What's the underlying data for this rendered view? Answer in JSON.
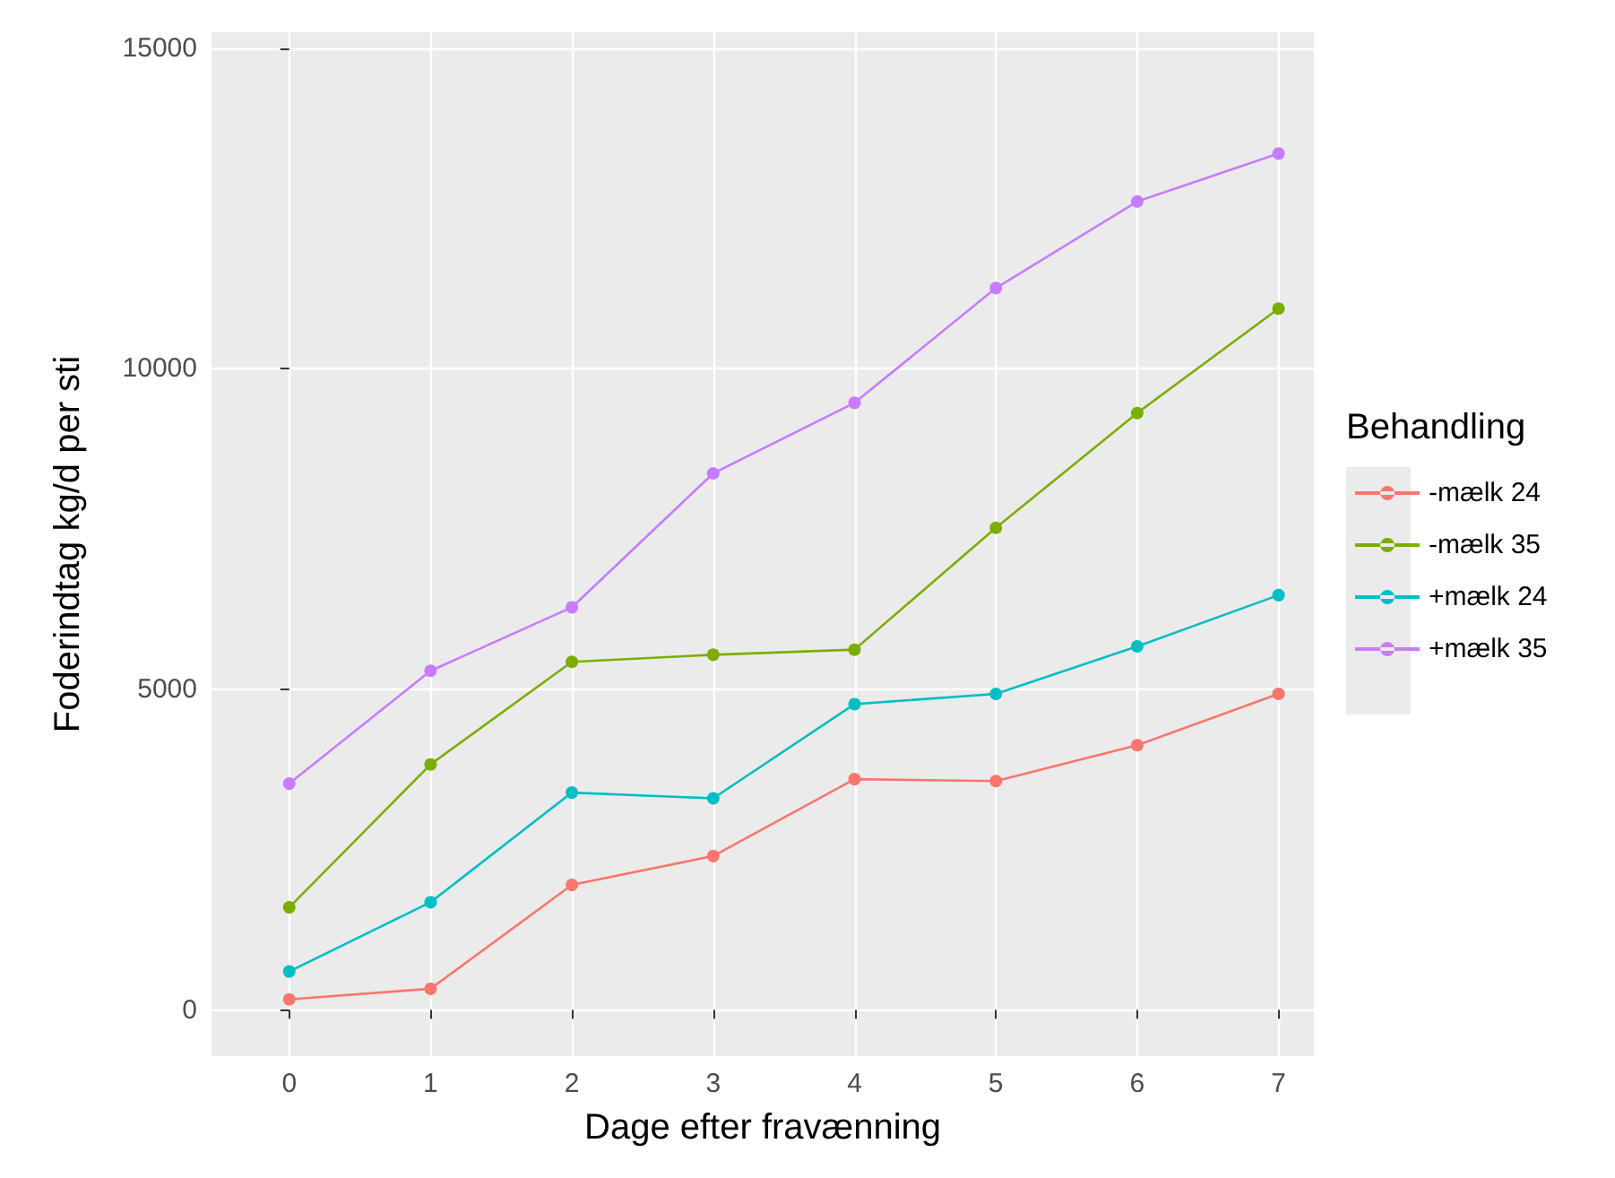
{
  "chart_data": {
    "type": "line",
    "xlabel": "Dage efter fravænning",
    "ylabel": "Foderindtag kg/d per sti",
    "legend_title": "Behandling",
    "x": [
      0,
      1,
      2,
      3,
      4,
      5,
      6,
      7
    ],
    "series": [
      {
        "name": "-mælk 24",
        "color": "#f8766d",
        "values": [
          165,
          330,
          1950,
          2400,
          3600,
          3570,
          4130,
          4930
        ]
      },
      {
        "name": "-mælk 35",
        "color": "#7cae00",
        "values": [
          1600,
          3830,
          5430,
          5540,
          5620,
          7520,
          9310,
          10940
        ]
      },
      {
        "name": "+mælk 24",
        "color": "#00bfc4",
        "values": [
          600,
          1680,
          3390,
          3300,
          4770,
          4930,
          5670,
          6470
        ]
      },
      {
        "name": "+mælk 35",
        "color": "#c77cff",
        "values": [
          3530,
          5290,
          6280,
          8370,
          9470,
          11260,
          12610,
          13360
        ]
      }
    ],
    "xlim": [
      -0.55,
      7.25
    ],
    "xticks": [
      0,
      1,
      2,
      3,
      4,
      5,
      6,
      7
    ],
    "ylim": [
      -720,
      15250
    ],
    "yticks": [
      0,
      5000,
      10000,
      15000
    ],
    "grid": true,
    "legend": "right",
    "marker": "circle",
    "line_style": "solid"
  }
}
